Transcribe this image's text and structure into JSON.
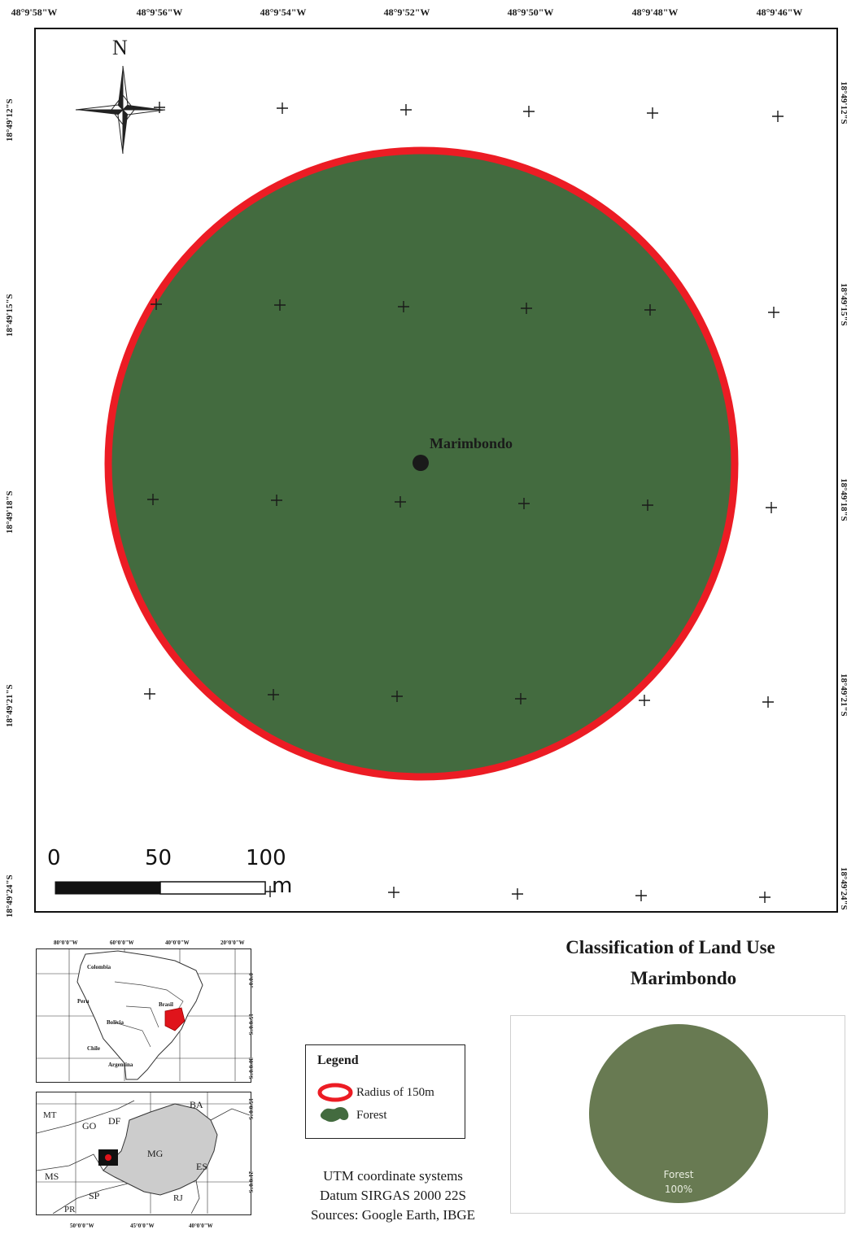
{
  "map": {
    "lon_labels": [
      "48°9'58\"W",
      "48°9'56\"W",
      "48°9'54\"W",
      "48°9'52\"W",
      "48°9'50\"W",
      "48°9'48\"W",
      "48°9'46\"W"
    ],
    "lat_labels_left": [
      "18°49'12\"S",
      "18°49'15\"S",
      "18°49'18\"S",
      "18°49'21\"S",
      "18°49'24\"S"
    ],
    "lat_labels_right": [
      "18°49'12\"S",
      "18°49'15\"S",
      "18°49'18\"S",
      "18°49'21\"S",
      "18°49'24\"S"
    ],
    "north_label": "N",
    "point_label": "Marimbondo",
    "buffer_color": "#ec1c24",
    "forest_color": "#436b3f"
  },
  "scale_bar": {
    "labels": [
      "0",
      "50",
      "100"
    ],
    "unit": "m"
  },
  "inset_south_america": {
    "lon_labels": [
      "80°0'0\"W",
      "60°0'0\"W",
      "40°0'0\"W",
      "20°0'0\"W"
    ],
    "lat_labels": [
      "0°0'0\"",
      "15°0'0\"S",
      "30°0'0\"S"
    ],
    "country_labels": [
      "Colombia",
      "Peru",
      "Brasil",
      "Bolivia",
      "Chile",
      "Argentina"
    ],
    "highlight_color": "#e0141b"
  },
  "inset_region": {
    "state_labels": [
      "MT",
      "GO",
      "DF",
      "BA",
      "MG",
      "ES",
      "MS",
      "SP",
      "RJ",
      "PR"
    ],
    "lon_labels": [
      "50°0'0\"W",
      "45°0'0\"W",
      "40°0'0\"W"
    ],
    "lat_labels": [
      "15°0'0\"S",
      "21°0'0\"S"
    ],
    "state_fill": "#cccccc"
  },
  "legend": {
    "title": "Legend",
    "items": [
      {
        "label": "Radius of 150m",
        "symbol": "red-ring"
      },
      {
        "label": "Forest",
        "symbol": "green-patch"
      }
    ]
  },
  "info": {
    "lines": [
      "UTM coordinate systems",
      "Datum SIRGAS 2000 22S",
      "Sources: Google Earth, IBGE"
    ]
  },
  "classification": {
    "title_line1": "Classification of Land Use",
    "title_line2": "Marimbondo",
    "pie_color": "#687a52",
    "pie_label": "Forest",
    "pie_value_label": "100%"
  },
  "chart_data": {
    "type": "pie",
    "title": "Classification of Land Use Marimbondo",
    "categories": [
      "Forest"
    ],
    "values": [
      100
    ],
    "unit": "%",
    "labels": [
      "Forest 100%"
    ]
  }
}
